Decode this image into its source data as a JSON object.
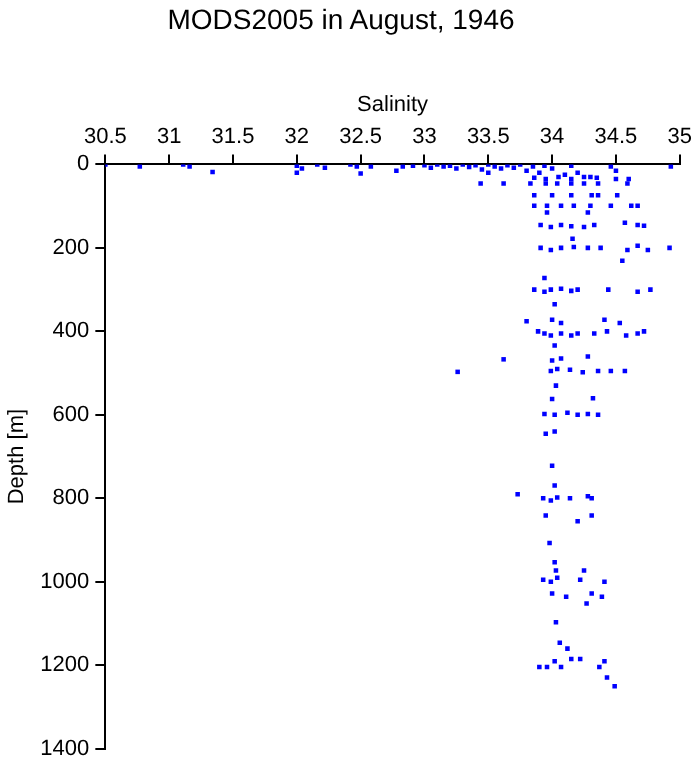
{
  "chart_data": {
    "type": "scatter",
    "title": "MODS2005 in August, 1946",
    "xlabel": "Salinity",
    "ylabel": "Depth [m]",
    "xlim": [
      30.5,
      35
    ],
    "xticks": [
      30.5,
      31,
      31.5,
      32,
      32.5,
      33,
      33.5,
      34,
      34.5,
      35
    ],
    "ylim": [
      1400,
      0
    ],
    "yticks": [
      0,
      200,
      400,
      600,
      800,
      1000,
      1200,
      1400
    ],
    "grid": false,
    "legend": false,
    "marker": "square",
    "series": [
      {
        "color": "#0000ff",
        "x": [
          30.5,
          30.77,
          31.11,
          31.16,
          31.34,
          32.0,
          32.04,
          32.0,
          32.16,
          32.22,
          32.42,
          32.47,
          32.5,
          32.58,
          32.78,
          32.83,
          32.91,
          33.0,
          33.05,
          33.1,
          33.15,
          33.2,
          33.25,
          33.3,
          33.35,
          33.4,
          33.45,
          33.5,
          33.5,
          33.55,
          33.6,
          33.65,
          33.7,
          33.75,
          33.8,
          33.85,
          33.9,
          33.94,
          34.0,
          34.1,
          34.15,
          34.2,
          34.3,
          34.46,
          34.5,
          34.93,
          33.86,
          33.95,
          34.05,
          34.15,
          34.25,
          34.35,
          34.5,
          34.6,
          33.44,
          33.62,
          33.83,
          33.95,
          34.04,
          34.15,
          34.25,
          34.36,
          34.59,
          33.86,
          34.0,
          34.15,
          34.31,
          34.36,
          34.51,
          33.86,
          33.96,
          34.07,
          34.17,
          34.3,
          34.46,
          34.62,
          34.67,
          33.96,
          34.28,
          33.91,
          33.99,
          34.07,
          34.15,
          34.25,
          34.33,
          34.57,
          34.67,
          34.72,
          34.16,
          33.91,
          33.99,
          34.07,
          34.17,
          34.28,
          34.38,
          34.59,
          34.67,
          34.75,
          34.92,
          34.55,
          33.94,
          33.86,
          33.94,
          33.99,
          34.07,
          34.15,
          34.2,
          34.44,
          34.67,
          34.77,
          34.02,
          33.8,
          34.0,
          34.07,
          34.41,
          34.53,
          33.89,
          33.94,
          33.99,
          34.07,
          34.15,
          34.2,
          34.33,
          34.43,
          34.58,
          34.67,
          34.72,
          34.02,
          33.62,
          34.0,
          34.07,
          34.28,
          33.26,
          33.99,
          34.04,
          34.14,
          34.24,
          34.36,
          34.46,
          34.57,
          34.03,
          34.0,
          34.32,
          33.94,
          34.02,
          34.12,
          34.2,
          34.28,
          34.36,
          33.95,
          34.02,
          34.0,
          34.02,
          33.73,
          33.93,
          33.99,
          34.04,
          34.14,
          34.28,
          34.31,
          33.95,
          34.31,
          34.2,
          33.98,
          34.02,
          34.03,
          34.25,
          33.93,
          33.99,
          34.04,
          34.22,
          34.41,
          34.0,
          34.31,
          34.11,
          34.39,
          34.27,
          34.03,
          34.06,
          34.12,
          34.02,
          34.15,
          34.22,
          34.41,
          33.9,
          33.96,
          34.07,
          34.37,
          34.43,
          34.49
        ],
        "values": [
          0,
          5,
          0,
          5,
          18,
          3,
          10,
          20,
          0,
          8,
          0,
          5,
          22,
          5,
          15,
          5,
          3,
          2,
          8,
          0,
          5,
          3,
          10,
          0,
          6,
          2,
          12,
          0,
          20,
          5,
          10,
          2,
          8,
          0,
          15,
          5,
          20,
          3,
          10,
          25,
          3,
          20,
          30,
          5,
          15,
          5,
          32,
          35,
          30,
          35,
          30,
          32,
          35,
          35,
          46,
          46,
          46,
          46,
          46,
          46,
          46,
          46,
          46,
          74,
          74,
          74,
          74,
          74,
          74,
          99,
          99,
          99,
          99,
          99,
          99,
          99,
          99,
          115,
          115,
          145,
          150,
          145,
          148,
          150,
          145,
          140,
          145,
          147,
          178,
          200,
          205,
          200,
          198,
          200,
          200,
          205,
          195,
          205,
          200,
          231,
          272,
          300,
          305,
          300,
          298,
          303,
          300,
          300,
          305,
          300,
          335,
          376,
          372,
          380,
          372,
          380,
          400,
          405,
          410,
          405,
          410,
          405,
          405,
          400,
          410,
          405,
          400,
          434,
          467,
          470,
          465,
          460,
          497,
          495,
          490,
          492,
          498,
          495,
          495,
          495,
          530,
          562,
          560,
          598,
          600,
          595,
          600,
          598,
          600,
          645,
          640,
          722,
          769,
          790,
          800,
          805,
          798,
          800,
          795,
          800,
          841,
          841,
          855,
          907,
          953,
          973,
          973,
          995,
          1000,
          990,
          995,
          1000,
          1028,
          1028,
          1036,
          1036,
          1052,
          1097,
          1146,
          1160,
          1190,
          1185,
          1185,
          1190,
          1204,
          1204,
          1204,
          1204,
          1229,
          1250
        ]
      }
    ]
  }
}
